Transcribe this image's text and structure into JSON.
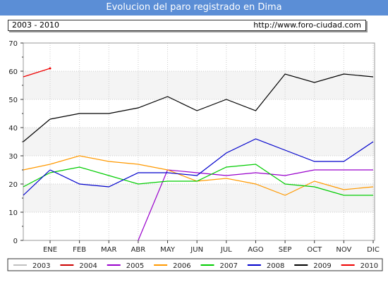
{
  "title": "Evolucion del paro registrado en Dima",
  "header": {
    "range": "2003 - 2010",
    "url": "http://www.foro-ciudad.com"
  },
  "chart_data": {
    "type": "line",
    "categories": [
      "ENE",
      "FEB",
      "MAR",
      "ABR",
      "MAY",
      "JUN",
      "JUL",
      "AGO",
      "SEP",
      "OCT",
      "NOV",
      "DIC"
    ],
    "ylim": [
      0,
      70
    ],
    "yticks": [
      0,
      10,
      20,
      30,
      40,
      50,
      60,
      70
    ],
    "grid": true,
    "legend_position": "bottom",
    "series": [
      {
        "name": "2003",
        "color": "#c0c0c0",
        "values": [
          null,
          null,
          null,
          null,
          null,
          null,
          null,
          null,
          null,
          null,
          null,
          null
        ]
      },
      {
        "name": "2004",
        "color": "#cc0000",
        "values": [
          null,
          null,
          null,
          null,
          null,
          null,
          null,
          null,
          null,
          null,
          null,
          null
        ]
      },
      {
        "name": "2005",
        "color": "#9900cc",
        "values": [
          null,
          null,
          null,
          0,
          25,
          24,
          23,
          24,
          23,
          25,
          25,
          25
        ]
      },
      {
        "name": "2006",
        "color": "#ff9900",
        "values": [
          27,
          30,
          28,
          27,
          25,
          21,
          22,
          20,
          16,
          21,
          18,
          19
        ]
      },
      {
        "name": "2007",
        "color": "#00cc00",
        "values": [
          24,
          26,
          23,
          20,
          21,
          21,
          26,
          27,
          20,
          19,
          16,
          16
        ]
      },
      {
        "name": "2008",
        "color": "#0000cc",
        "values": [
          25,
          20,
          19,
          24,
          24,
          23,
          31,
          36,
          32,
          28,
          28,
          35
        ]
      },
      {
        "name": "2009",
        "color": "#000000",
        "values": [
          43,
          45,
          45,
          47,
          51,
          46,
          50,
          46,
          59,
          56,
          59,
          58
        ]
      },
      {
        "name": "2010",
        "color": "#ee0000",
        "values": [
          61,
          null,
          null,
          null,
          null,
          null,
          null,
          null,
          null,
          null,
          null,
          null
        ]
      }
    ]
  }
}
